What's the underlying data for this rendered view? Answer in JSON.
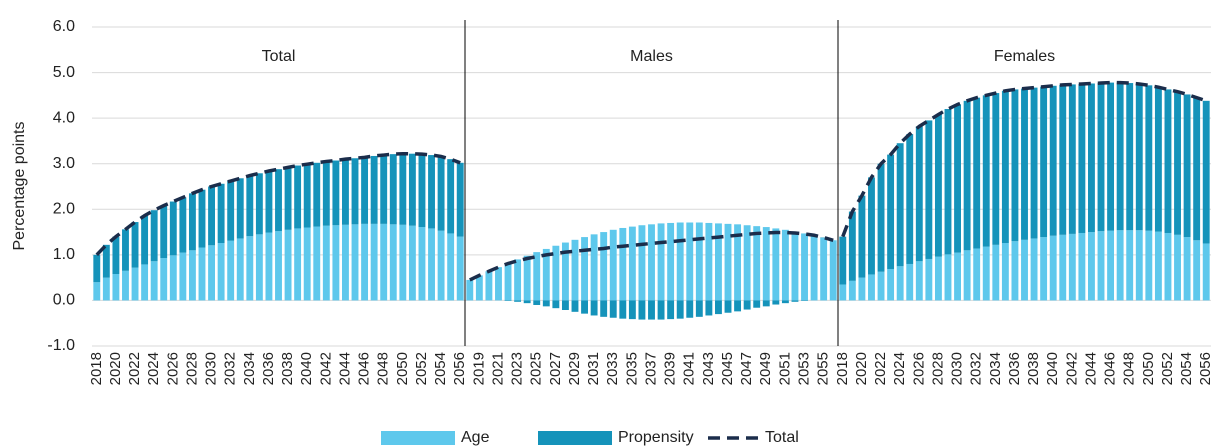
{
  "chart_data": {
    "type": "bar",
    "stacked": true,
    "y_label": "Percentage points",
    "panels": [
      "Total",
      "Males",
      "Females"
    ],
    "categories": [
      "2018",
      null,
      "2020",
      null,
      "2022",
      null,
      "2024",
      null,
      "2026",
      null,
      "2028",
      null,
      "2030",
      null,
      "2032",
      null,
      "2034",
      null,
      "2036",
      null,
      "2038",
      null,
      "2040",
      null,
      "2042",
      null,
      "2044",
      null,
      "2046",
      null,
      "2048",
      null,
      "2050",
      null,
      "2052",
      null,
      "2054",
      null,
      "2056",
      null,
      "2019",
      null,
      "2021",
      null,
      "2023",
      null,
      "2025",
      null,
      "2027",
      null,
      "2029",
      null,
      "2031",
      null,
      "2033",
      null,
      "2035",
      null,
      "2037",
      null,
      "2039",
      null,
      "2041",
      null,
      "2043",
      null,
      "2045",
      null,
      "2047",
      null,
      "2049",
      null,
      "2051",
      null,
      "2053",
      null,
      "2055",
      null,
      "2018",
      null,
      "2020",
      null,
      "2022",
      null,
      "2024",
      null,
      "2026",
      null,
      "2028",
      null,
      "2030",
      null,
      "2032",
      null,
      "2034",
      null,
      "2036",
      null,
      "2038",
      null,
      "2040",
      null,
      "2042",
      null,
      "2044",
      null,
      "2046",
      null,
      "2048",
      null,
      "2050",
      null,
      "2052",
      null,
      "2054",
      null,
      "2056"
    ],
    "series": [
      {
        "name": "Age",
        "color": "#5ec8ec",
        "values": [
          0.4,
          0.5,
          0.58,
          0.65,
          0.72,
          0.79,
          0.86,
          0.93,
          0.99,
          1.05,
          1.1,
          1.16,
          1.21,
          1.26,
          1.31,
          1.36,
          1.41,
          1.45,
          1.49,
          1.52,
          1.55,
          1.58,
          1.6,
          1.62,
          1.64,
          1.65,
          1.66,
          1.67,
          1.68,
          1.68,
          1.68,
          1.67,
          1.66,
          1.64,
          1.61,
          1.58,
          1.53,
          1.47,
          1.4,
          0.45,
          0.55,
          0.64,
          0.73,
          0.82,
          0.9,
          0.98,
          1.06,
          1.13,
          1.2,
          1.27,
          1.33,
          1.39,
          1.45,
          1.5,
          1.55,
          1.59,
          1.62,
          1.65,
          1.67,
          1.69,
          1.7,
          1.71,
          1.71,
          1.71,
          1.7,
          1.69,
          1.68,
          1.67,
          1.65,
          1.63,
          1.61,
          1.58,
          1.55,
          1.51,
          1.47,
          1.42,
          1.37,
          1.32,
          0.35,
          0.43,
          0.5,
          0.57,
          0.63,
          0.69,
          0.75,
          0.8,
          0.86,
          0.91,
          0.96,
          1.01,
          1.05,
          1.1,
          1.14,
          1.18,
          1.22,
          1.26,
          1.3,
          1.33,
          1.36,
          1.39,
          1.42,
          1.44,
          1.46,
          1.48,
          1.5,
          1.52,
          1.53,
          1.54,
          1.54,
          1.54,
          1.53,
          1.51,
          1.48,
          1.44,
          1.39,
          1.32,
          1.25
        ]
      },
      {
        "name": "Propensity",
        "color": "#1593ba",
        "values": [
          0.6,
          0.72,
          0.82,
          0.91,
          1.0,
          1.07,
          1.12,
          1.15,
          1.18,
          1.21,
          1.25,
          1.27,
          1.29,
          1.3,
          1.31,
          1.32,
          1.33,
          1.34,
          1.35,
          1.36,
          1.37,
          1.38,
          1.39,
          1.4,
          1.41,
          1.42,
          1.44,
          1.45,
          1.46,
          1.49,
          1.51,
          1.54,
          1.56,
          1.58,
          1.6,
          1.61,
          1.63,
          1.63,
          1.62,
          0.0,
          0.0,
          0.0,
          0.0,
          -0.01,
          -0.03,
          -0.06,
          -0.1,
          -0.13,
          -0.17,
          -0.21,
          -0.25,
          -0.29,
          -0.33,
          -0.36,
          -0.38,
          -0.4,
          -0.41,
          -0.42,
          -0.42,
          -0.42,
          -0.41,
          -0.4,
          -0.38,
          -0.36,
          -0.33,
          -0.3,
          -0.27,
          -0.24,
          -0.2,
          -0.16,
          -0.13,
          -0.09,
          -0.06,
          -0.03,
          -0.01,
          0.01,
          0.01,
          0.0,
          1.05,
          1.52,
          1.8,
          2.13,
          2.37,
          2.51,
          2.7,
          2.85,
          2.96,
          3.04,
          3.12,
          3.19,
          3.25,
          3.28,
          3.31,
          3.32,
          3.33,
          3.34,
          3.33,
          3.32,
          3.31,
          3.3,
          3.29,
          3.29,
          3.28,
          3.27,
          3.26,
          3.25,
          3.25,
          3.24,
          3.23,
          3.21,
          3.19,
          3.17,
          3.15,
          3.14,
          3.13,
          3.13,
          3.13
        ]
      },
      {
        "name": "Total",
        "type": "line",
        "color": "#1b2d4b",
        "dashed": true,
        "values": [
          1.0,
          1.22,
          1.4,
          1.56,
          1.72,
          1.86,
          1.98,
          2.08,
          2.17,
          2.26,
          2.35,
          2.43,
          2.5,
          2.56,
          2.62,
          2.68,
          2.74,
          2.79,
          2.84,
          2.88,
          2.92,
          2.96,
          2.99,
          3.02,
          3.05,
          3.07,
          3.1,
          3.12,
          3.14,
          3.17,
          3.19,
          3.21,
          3.22,
          3.22,
          3.21,
          3.19,
          3.16,
          3.1,
          3.02,
          0.45,
          0.55,
          0.64,
          0.73,
          0.81,
          0.87,
          0.92,
          0.96,
          1.0,
          1.03,
          1.06,
          1.08,
          1.1,
          1.12,
          1.14,
          1.17,
          1.19,
          1.21,
          1.23,
          1.25,
          1.27,
          1.29,
          1.31,
          1.33,
          1.35,
          1.37,
          1.39,
          1.41,
          1.43,
          1.45,
          1.47,
          1.48,
          1.49,
          1.49,
          1.48,
          1.46,
          1.43,
          1.38,
          1.32,
          1.4,
          1.95,
          2.3,
          2.7,
          3.0,
          3.2,
          3.45,
          3.65,
          3.82,
          3.95,
          4.08,
          4.2,
          4.3,
          4.38,
          4.45,
          4.5,
          4.55,
          4.6,
          4.63,
          4.65,
          4.67,
          4.69,
          4.71,
          4.73,
          4.74,
          4.75,
          4.76,
          4.77,
          4.78,
          4.78,
          4.77,
          4.75,
          4.72,
          4.68,
          4.63,
          4.58,
          4.52,
          4.45,
          4.38
        ]
      }
    ],
    "ylim": [
      -1,
      6
    ],
    "yticks": [
      {
        "value": -1,
        "label": "-1.0"
      },
      {
        "value": 0,
        "label": "0.0"
      },
      {
        "value": 1,
        "label": "1.0"
      },
      {
        "value": 2,
        "label": "2.0"
      },
      {
        "value": 3,
        "label": "3.0"
      },
      {
        "value": 4,
        "label": "4.0"
      },
      {
        "value": 5,
        "label": "5.0"
      },
      {
        "value": 6,
        "label": "6.0"
      }
    ],
    "grid": true
  }
}
